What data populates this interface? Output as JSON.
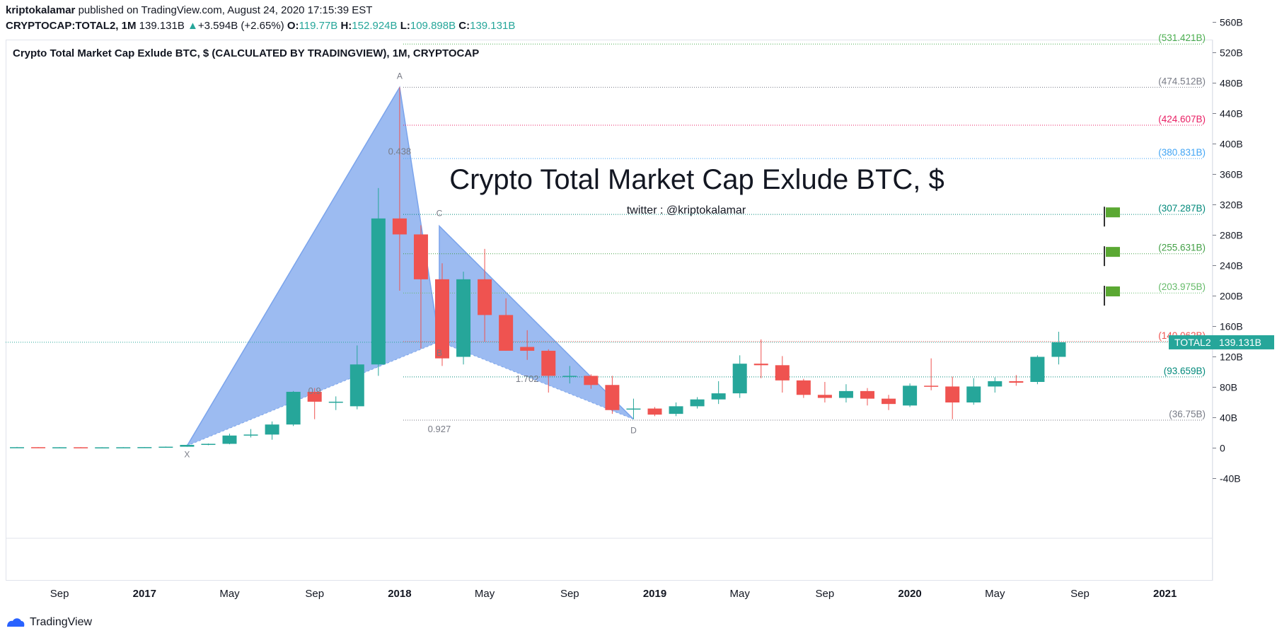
{
  "header": {
    "author": "kriptokalamar",
    "published": "published on TradingView.com, August 24, 2020 17:15:39 EST",
    "symbol": "CRYPTOCAP:TOTAL2, 1M",
    "last": "139.131B",
    "arrow": "▲",
    "change": "+3.594B (+2.65%)",
    "o_label": "O:",
    "o": "119.77B",
    "h_label": "H:",
    "h": "152.924B",
    "l_label": "L:",
    "l": "109.898B",
    "c_label": "C:",
    "c": "139.131B"
  },
  "footer": {
    "brand": "TradingView"
  },
  "chart_data": {
    "type": "candlestick",
    "title": "Crypto Total Market Cap Exlude BTC, $ (CALCULATED BY TRADINGVIEW), 1M, CRYPTOCAP",
    "overlay_title": "Crypto Total Market Cap Exlude BTC, $",
    "overlay_subtitle": "twitter : @kriptokalamar",
    "ylim": [
      -60,
      570
    ],
    "y_ticks": [
      -40,
      0,
      40,
      80,
      120,
      160,
      200,
      240,
      280,
      320,
      360,
      400,
      440,
      480,
      520,
      560
    ],
    "y_tick_labels": [
      "-40B",
      "0",
      "40B",
      "80B",
      "120B",
      "160B",
      "200B",
      "240B",
      "280B",
      "320B",
      "360B",
      "400B",
      "440B",
      "480B",
      "520B",
      "560B"
    ],
    "x_range": [
      "2016-07",
      "2021-02"
    ],
    "x_ticks": [
      {
        "date": "2016-09",
        "label": "Sep",
        "bold": false
      },
      {
        "date": "2017-01",
        "label": "2017",
        "bold": true
      },
      {
        "date": "2017-05",
        "label": "May",
        "bold": false
      },
      {
        "date": "2017-09",
        "label": "Sep",
        "bold": false
      },
      {
        "date": "2018-01",
        "label": "2018",
        "bold": true
      },
      {
        "date": "2018-05",
        "label": "May",
        "bold": false
      },
      {
        "date": "2018-09",
        "label": "Sep",
        "bold": false
      },
      {
        "date": "2019-01",
        "label": "2019",
        "bold": true
      },
      {
        "date": "2019-05",
        "label": "May",
        "bold": false
      },
      {
        "date": "2019-09",
        "label": "Sep",
        "bold": false
      },
      {
        "date": "2020-01",
        "label": "2020",
        "bold": true
      },
      {
        "date": "2020-05",
        "label": "May",
        "bold": false
      },
      {
        "date": "2020-09",
        "label": "Sep",
        "bold": false
      },
      {
        "date": "2021-01",
        "label": "2021",
        "bold": true
      }
    ],
    "candles": [
      {
        "date": "2016-07",
        "o": 1,
        "h": 1.5,
        "l": 0.8,
        "c": 1.2
      },
      {
        "date": "2016-08",
        "o": 1.2,
        "h": 1.3,
        "l": 0.9,
        "c": 1.0
      },
      {
        "date": "2016-09",
        "o": 1.0,
        "h": 1.2,
        "l": 0.9,
        "c": 1.1
      },
      {
        "date": "2016-10",
        "o": 1.1,
        "h": 1.2,
        "l": 0.9,
        "c": 1.0
      },
      {
        "date": "2016-11",
        "o": 1.0,
        "h": 1.1,
        "l": 0.9,
        "c": 1.0
      },
      {
        "date": "2016-12",
        "o": 1.0,
        "h": 1.2,
        "l": 0.9,
        "c": 1.1
      },
      {
        "date": "2017-01",
        "o": 1.1,
        "h": 1.4,
        "l": 1.0,
        "c": 1.3
      },
      {
        "date": "2017-02",
        "o": 1.3,
        "h": 2.0,
        "l": 1.2,
        "c": 1.8
      },
      {
        "date": "2017-03",
        "o": 1.8,
        "h": 4.5,
        "l": 1.7,
        "c": 4.2
      },
      {
        "date": "2017-04",
        "o": 4.2,
        "h": 6,
        "l": 3.8,
        "c": 5.6
      },
      {
        "date": "2017-05",
        "o": 5.6,
        "h": 19,
        "l": 5,
        "c": 16.5
      },
      {
        "date": "2017-06",
        "o": 16.5,
        "h": 25,
        "l": 14,
        "c": 17.8
      },
      {
        "date": "2017-07",
        "o": 17.8,
        "h": 35,
        "l": 11,
        "c": 31
      },
      {
        "date": "2017-08",
        "o": 31,
        "h": 75,
        "l": 29,
        "c": 74
      },
      {
        "date": "2017-09",
        "o": 74,
        "h": 79,
        "l": 38,
        "c": 61
      },
      {
        "date": "2017-10",
        "o": 61,
        "h": 68,
        "l": 50,
        "c": 61
      },
      {
        "date": "2017-11",
        "o": 55,
        "h": 135,
        "l": 51,
        "c": 110
      },
      {
        "date": "2017-12",
        "o": 110,
        "h": 342,
        "l": 95,
        "c": 302
      },
      {
        "date": "2018-01",
        "o": 302,
        "h": 474.5,
        "l": 207,
        "c": 281
      },
      {
        "date": "2018-02",
        "o": 281,
        "h": 293,
        "l": 131,
        "c": 222
      },
      {
        "date": "2018-03",
        "o": 222,
        "h": 243,
        "l": 108,
        "c": 118
      },
      {
        "date": "2018-04",
        "o": 120,
        "h": 232,
        "l": 110,
        "c": 222
      },
      {
        "date": "2018-05",
        "o": 222,
        "h": 262,
        "l": 140,
        "c": 175
      },
      {
        "date": "2018-06",
        "o": 175,
        "h": 197,
        "l": 128,
        "c": 128
      },
      {
        "date": "2018-07",
        "o": 133,
        "h": 155,
        "l": 116,
        "c": 128
      },
      {
        "date": "2018-08",
        "o": 128,
        "h": 130,
        "l": 73,
        "c": 95
      },
      {
        "date": "2018-09",
        "o": 95,
        "h": 108,
        "l": 85,
        "c": 95
      },
      {
        "date": "2018-10",
        "o": 95,
        "h": 97,
        "l": 78,
        "c": 83
      },
      {
        "date": "2018-11",
        "o": 83,
        "h": 95,
        "l": 45,
        "c": 50
      },
      {
        "date": "2018-12",
        "o": 52,
        "h": 65,
        "l": 38,
        "c": 52
      },
      {
        "date": "2019-01",
        "o": 52,
        "h": 54,
        "l": 42,
        "c": 44
      },
      {
        "date": "2019-02",
        "o": 45,
        "h": 60,
        "l": 42,
        "c": 55
      },
      {
        "date": "2019-03",
        "o": 55,
        "h": 67,
        "l": 52,
        "c": 64
      },
      {
        "date": "2019-04",
        "o": 64,
        "h": 88,
        "l": 58,
        "c": 72
      },
      {
        "date": "2019-05",
        "o": 72,
        "h": 122,
        "l": 66,
        "c": 111
      },
      {
        "date": "2019-06",
        "o": 111,
        "h": 143,
        "l": 92,
        "c": 109
      },
      {
        "date": "2019-07",
        "o": 109,
        "h": 121,
        "l": 73,
        "c": 89
      },
      {
        "date": "2019-08",
        "o": 89,
        "h": 91,
        "l": 66,
        "c": 70
      },
      {
        "date": "2019-09",
        "o": 70,
        "h": 87,
        "l": 60,
        "c": 66
      },
      {
        "date": "2019-10",
        "o": 66,
        "h": 84,
        "l": 60,
        "c": 75
      },
      {
        "date": "2019-11",
        "o": 75,
        "h": 79,
        "l": 56,
        "c": 65
      },
      {
        "date": "2019-12",
        "o": 65,
        "h": 70,
        "l": 50,
        "c": 58
      },
      {
        "date": "2020-01",
        "o": 56,
        "h": 85,
        "l": 54,
        "c": 82
      },
      {
        "date": "2020-02",
        "o": 82,
        "h": 118,
        "l": 76,
        "c": 81
      },
      {
        "date": "2020-03",
        "o": 81,
        "h": 94,
        "l": 38,
        "c": 60
      },
      {
        "date": "2020-04",
        "o": 60,
        "h": 92,
        "l": 57,
        "c": 81
      },
      {
        "date": "2020-05",
        "o": 81,
        "h": 93,
        "l": 73,
        "c": 88
      },
      {
        "date": "2020-06",
        "o": 88,
        "h": 96,
        "l": 82,
        "c": 86
      },
      {
        "date": "2020-07",
        "o": 87,
        "h": 122,
        "l": 84,
        "c": 120
      },
      {
        "date": "2020-08",
        "o": 120,
        "h": 153,
        "l": 110,
        "c": 139.131
      }
    ],
    "fib_levels": [
      {
        "value": 531.421,
        "label": "(531.421B)",
        "color": "#4caf50"
      },
      {
        "value": 474.512,
        "label": "(474.512B)",
        "color": "#787b86"
      },
      {
        "value": 424.607,
        "label": "(424.607B)",
        "color": "#e91e63"
      },
      {
        "value": 380.831,
        "label": "(380.831B)",
        "color": "#42a5f5"
      },
      {
        "value": 307.287,
        "label": "(307.287B)",
        "color": "#00897b"
      },
      {
        "value": 255.631,
        "label": "(255.631B)",
        "color": "#43a047"
      },
      {
        "value": 203.975,
        "label": "(203.975B)",
        "color": "#66bb6a"
      },
      {
        "value": 140.062,
        "label": "(140.062B)",
        "color": "#ef5350"
      },
      {
        "value": 93.659,
        "label": "(93.659B)",
        "color": "#00897b"
      },
      {
        "value": 36.75,
        "label": "(36.75B)",
        "color": "#787b86"
      }
    ],
    "harmonic": {
      "points": [
        {
          "label": "X",
          "date": "2017-03",
          "value": 3
        },
        {
          "label": "A",
          "date": "2018-01",
          "value": 474.5
        },
        {
          "label": "B",
          "date": "2018-02",
          "value": 140
        },
        {
          "label": "C",
          "date": "2018-02",
          "value": 292
        },
        {
          "label": "D",
          "date": "2018-12",
          "value": 38
        }
      ],
      "ratios": [
        {
          "label": "0.438",
          "date": "2018-01",
          "value": 386
        },
        {
          "label": "1.702",
          "date": "2018-07",
          "value": 87
        },
        {
          "label": "0.927",
          "date": "2018-02",
          "value": 21
        },
        {
          "label": "0.9",
          "date": "2017-09",
          "value": 71
        }
      ]
    },
    "flags": [
      310,
      258,
      206
    ],
    "last_price": {
      "label": "TOTAL2",
      "value": 139.131,
      "text": "139.131B"
    },
    "colors": {
      "up": "#26a69a",
      "down": "#ef5350",
      "pattern": "#7ba4ec",
      "bg": "#ffffff",
      "flag": "#5aa832"
    }
  }
}
